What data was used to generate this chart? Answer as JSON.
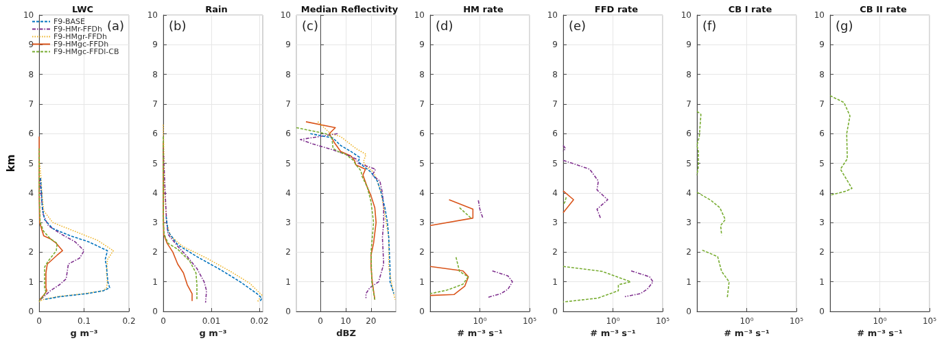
{
  "chart_data": [
    {
      "type": "line",
      "title": "LWC",
      "xlabel": "g m⁻³",
      "ylabel": "km",
      "annotations": [
        "(a)"
      ],
      "xlim": [
        0,
        0.2
      ],
      "xticks": [
        0,
        0.1,
        0.2
      ],
      "ylim": [
        0,
        10
      ],
      "yticks": [
        0,
        1,
        2,
        3,
        4,
        5,
        6,
        7,
        8,
        9,
        10
      ],
      "grid": true,
      "legend": "top left",
      "series": [
        {
          "name": "F9-BASE",
          "color": "#0072bd",
          "line_style": "dashed",
          "x": [
            0.003,
            0.005,
            0.007,
            0.012,
            0.03,
            0.07,
            0.11,
            0.152,
            0.147,
            0.15,
            0.153,
            0.157,
            0.143,
            0.106,
            0.046,
            0.01
          ],
          "values": [
            4.5,
            4,
            3.5,
            3.1,
            2.8,
            2.55,
            2.35,
            2.05,
            1.75,
            1.5,
            1.0,
            0.8,
            0.7,
            0.6,
            0.5,
            0.4
          ]
        },
        {
          "name": "F9-HMr-FFDh",
          "color": "#7e2f8e",
          "line_style": "dashdot",
          "x": [
            0.001,
            0.004,
            0.008,
            0.02,
            0.05,
            0.08,
            0.1,
            0.09,
            0.065,
            0.06,
            0.045,
            0.025,
            0.01,
            0.003,
            0
          ],
          "values": [
            4.5,
            4,
            3.3,
            2.9,
            2.6,
            2.35,
            2.05,
            1.8,
            1.6,
            1.1,
            0.9,
            0.7,
            0.5,
            0.4,
            0.35
          ]
        },
        {
          "name": "F9-HMgr-FFDh",
          "color": "#edb120",
          "line_style": "dotted",
          "x": [
            0.001,
            0.004,
            0.006,
            0.01,
            0.03,
            0.08,
            0.13,
            0.165,
            0.152,
            0.15,
            0.152,
            0.15,
            0.143,
            0.1,
            0.04,
            0.008,
            0
          ],
          "values": [
            5,
            4.5,
            4,
            3.4,
            3.0,
            2.7,
            2.4,
            2.05,
            1.75,
            1.3,
            1.0,
            0.8,
            0.7,
            0.6,
            0.5,
            0.4,
            0.33
          ]
        },
        {
          "name": "F9-HMgc-FFDh",
          "color": "#d95319",
          "line_style": "solid",
          "x": [
            0,
            0,
            0.001,
            0.006,
            0.01,
            0.025,
            0.038,
            0.052,
            0.04,
            0.018,
            0.015,
            0.015,
            0.017,
            0.01,
            0.004,
            0
          ],
          "values": [
            5.9,
            4,
            3,
            2.75,
            2.55,
            2.45,
            2.3,
            2.05,
            1.9,
            1.6,
            1.3,
            0.8,
            0.7,
            0.55,
            0.45,
            0.35
          ]
        },
        {
          "name": "F9-HMgc-FFDl-CB",
          "color": "#77ac30",
          "line_style": "dashed",
          "x": [
            0,
            0,
            0.002,
            0.01,
            0.025,
            0.04,
            0.038,
            0.02,
            0.012,
            0.012,
            0.012,
            0.015,
            0.008,
            0
          ],
          "values": [
            5.5,
            4,
            3,
            2.7,
            2.45,
            2.3,
            2.05,
            1.7,
            1.5,
            1.2,
            0.8,
            0.65,
            0.5,
            0.35
          ]
        }
      ]
    },
    {
      "type": "line",
      "title": "Rain",
      "xlabel": "g m⁻³",
      "annotations": [
        "(b)"
      ],
      "xlim": [
        0,
        0.0207
      ],
      "xticks": [
        0,
        0.01,
        0.02
      ],
      "ylim": [
        0,
        10
      ],
      "yticks": [
        0,
        1,
        2,
        3,
        4,
        5,
        6,
        7,
        8,
        9,
        10
      ],
      "grid": true,
      "series": [
        {
          "color": "#0072bd",
          "line_style": "dashed",
          "x": [
            0.0006,
            0.001,
            0.003,
            0.007,
            0.012,
            0.016,
            0.0195,
            0.0205,
            0.0202
          ],
          "values": [
            3.2,
            2.7,
            2.25,
            1.85,
            1.4,
            1.0,
            0.6,
            0.45,
            0.35
          ]
        },
        {
          "color": "#7e2f8e",
          "line_style": "dashdot",
          "x": [
            0,
            0.0004,
            0.0007,
            0.001,
            0.003,
            0.005,
            0.007,
            0.0085,
            0.009,
            0.0088
          ],
          "values": [
            5.5,
            4,
            3,
            2.6,
            2.2,
            1.85,
            1.45,
            1.0,
            0.7,
            0.3
          ]
        },
        {
          "color": "#edb120",
          "line_style": "dotted",
          "x": [
            0,
            0.0003,
            0.0007,
            0.0015,
            0.004,
            0.009,
            0.014,
            0.018,
            0.0205,
            0.0195
          ],
          "values": [
            6.3,
            4,
            3,
            2.55,
            2.2,
            1.8,
            1.35,
            0.95,
            0.55,
            0.3
          ]
        },
        {
          "color": "#d95319",
          "line_style": "solid",
          "x": [
            0,
            0,
            0.0001,
            0.0008,
            0.002,
            0.003,
            0.0042,
            0.005,
            0.006,
            0.006
          ],
          "values": [
            5.7,
            3.5,
            2.6,
            2.3,
            2.0,
            1.6,
            1.3,
            0.9,
            0.6,
            0.35
          ]
        },
        {
          "color": "#77ac30",
          "line_style": "dashed",
          "x": [
            0,
            0,
            0.0002,
            0.001,
            0.003,
            0.0055,
            0.0068,
            0.007,
            0.007
          ],
          "values": [
            5.9,
            3,
            2.6,
            2.3,
            2.1,
            1.7,
            1.3,
            0.9,
            0.4
          ]
        }
      ]
    },
    {
      "type": "line",
      "title": "Median Reflectivity",
      "xlabel": "dBZ",
      "annotations": [
        "(c)"
      ],
      "xlim": [
        -9.5,
        29.8
      ],
      "xticks": [
        0,
        10,
        20
      ],
      "ylim": [
        0,
        10
      ],
      "yticks": [
        0,
        1,
        2,
        3,
        4,
        5,
        6,
        7,
        8,
        9,
        10
      ],
      "grid": true,
      "series": [
        {
          "color": "#0072bd",
          "line_style": "dashed",
          "x": [
            -4,
            2,
            5,
            8,
            12,
            15.5,
            15,
            17,
            20,
            22.5,
            24,
            25.5,
            26.5,
            27,
            27.5,
            27.5,
            29
          ],
          "values": [
            6.0,
            5.9,
            5.85,
            5.6,
            5.4,
            5.2,
            5.05,
            4.9,
            4.7,
            4.4,
            4.0,
            3.5,
            3.0,
            2.5,
            1.5,
            1.0,
            0.6
          ]
        },
        {
          "color": "#7e2f8e",
          "line_style": "dashdot",
          "x": [
            6.8,
            -7.9,
            -3,
            5,
            10,
            14,
            15,
            21.8,
            20.5,
            23.5,
            24.5,
            25,
            25,
            24.5,
            25,
            23,
            19.5,
            18,
            18
          ],
          "values": [
            6.0,
            5.8,
            5.65,
            5.45,
            5.3,
            5.15,
            5.0,
            4.8,
            4.6,
            4.4,
            4.0,
            3.5,
            3.0,
            2.5,
            1.6,
            1.0,
            0.8,
            0.6,
            0.45
          ]
        },
        {
          "color": "#edb120",
          "line_style": "dotted",
          "x": [
            -1,
            4,
            8,
            14,
            18,
            17,
            18,
            21,
            22.5,
            24,
            25,
            26,
            27,
            27,
            28,
            29.5
          ],
          "values": [
            6.4,
            6.0,
            5.9,
            5.5,
            5.3,
            5.05,
            4.9,
            4.7,
            4.4,
            4.0,
            3.5,
            3.0,
            2.5,
            1.5,
            1.0,
            0.4
          ]
        },
        {
          "color": "#d95319",
          "line_style": "solid",
          "x": [
            -5.7,
            5.9,
            3.5,
            5.5,
            8,
            12,
            13.5,
            14,
            17.8,
            16.8,
            18.5,
            20,
            21.5,
            22,
            21,
            20,
            20,
            20.5,
            21.5
          ],
          "values": [
            6.4,
            6.2,
            6.0,
            5.7,
            5.4,
            5.25,
            5.1,
            4.95,
            4.8,
            4.6,
            4.2,
            3.9,
            3.5,
            3.0,
            2.3,
            1.9,
            1.5,
            1.0,
            0.4
          ]
        },
        {
          "color": "#77ac30",
          "line_style": "dashed",
          "x": [
            -9.5,
            2,
            4.5,
            5,
            7,
            10,
            13,
            14,
            16,
            16.5,
            18.5,
            20,
            21,
            20.5,
            20,
            20.3,
            21.5
          ],
          "values": [
            6.2,
            6.0,
            5.9,
            5.5,
            5.4,
            5.3,
            5.1,
            4.95,
            4.75,
            4.55,
            4.2,
            3.7,
            3.0,
            2.5,
            2.0,
            1.0,
            0.4
          ]
        }
      ]
    },
    {
      "type": "line",
      "title": "HM rate",
      "xlabel": "# m⁻³ s⁻¹",
      "annotations": [
        "(d)"
      ],
      "log": "x",
      "xlim": [
        1e-05,
        100000
      ],
      "xticks": [
        {
          "value": 1e-05,
          "label": null
        },
        {
          "value": 1,
          "label": "10⁰"
        },
        {
          "value": 100000,
          "label": "10⁵"
        }
      ],
      "ylim": [
        0,
        10
      ],
      "yticks": [
        0,
        1,
        2,
        3,
        4,
        5,
        6,
        7,
        8,
        9,
        10
      ],
      "grid": true,
      "series": [
        {
          "color": "#7e2f8e",
          "line_style": "dashdot",
          "x": [
            0.7,
            1,
            2,
            null,
            18,
            660,
            1900,
            660,
            130,
            5.5
          ],
          "values": [
            3.75,
            3.45,
            3.15,
            null,
            1.37,
            1.2,
            1.0,
            0.75,
            0.6,
            0.47
          ]
        },
        {
          "color": "#d95319",
          "line_style": "solid",
          "x": [
            0.0008,
            0.2,
            0.2,
            1e-05,
            null,
            1e-05,
            0.02,
            0.07,
            0.03,
            0.0025,
            1e-05
          ],
          "values": [
            3.77,
            3.45,
            3.15,
            2.9,
            null,
            1.52,
            1.37,
            1.17,
            0.85,
            0.57,
            0.54
          ]
        },
        {
          "color": "#77ac30",
          "line_style": "dashed",
          "x": [
            0.009,
            0.13,
            null,
            0.004,
            0.007,
            0.009,
            0.066,
            0.02,
            0.0005,
            1e-05
          ],
          "values": [
            3.5,
            3.15,
            null,
            1.83,
            1.5,
            1.35,
            1.17,
            0.92,
            0.72,
            0.6
          ]
        }
      ]
    },
    {
      "type": "line",
      "title": "FFD rate",
      "xlabel": "# m⁻³ s⁻¹",
      "annotations": [
        "(e)"
      ],
      "log": "x",
      "xlim": [
        1e-05,
        100000
      ],
      "xticks": [
        {
          "value": 1e-05,
          "label": null
        },
        {
          "value": 1,
          "label": "10⁰"
        },
        {
          "value": 100000,
          "label": "10⁵"
        }
      ],
      "ylim": [
        0,
        10
      ],
      "yticks": [
        0,
        1,
        2,
        3,
        4,
        5,
        6,
        7,
        8,
        9,
        10
      ],
      "grid": true,
      "series": [
        {
          "color": "#7e2f8e",
          "line_style": "dashdot",
          "x": [
            1e-05,
            0.0046,
            0.034,
            0.025,
            0.3,
            0.025,
            0.056,
            null,
            68,
            4800,
            10700,
            2800,
            560,
            16
          ],
          "values": [
            5.1,
            4.8,
            4.4,
            4.1,
            3.77,
            3.45,
            3.15,
            null,
            1.37,
            1.17,
            1.0,
            0.75,
            0.6,
            0.5
          ]
        },
        {
          "color": "#7e2f8e",
          "line_style": "dashdot",
          "x": [
            1e-05,
            1.7e-05,
            1e-05
          ],
          "values": [
            5.6,
            5.5,
            5.4
          ]
        },
        {
          "color": "#d95319",
          "line_style": "solid",
          "x": [
            1e-05,
            0.00011,
            1e-05
          ],
          "values": [
            4.07,
            3.77,
            3.33
          ]
        },
        {
          "color": "#77ac30",
          "line_style": "dashed",
          "x": [
            1e-05,
            0.087,
            60,
            3.5,
            3.5,
            0.03,
            1e-05
          ],
          "values": [
            1.52,
            1.35,
            1.0,
            0.9,
            0.7,
            0.45,
            0.32
          ]
        },
        {
          "color": "#77ac30",
          "line_style": "dashed",
          "x": [
            2e-05,
            1.5e-05,
            1e-05
          ],
          "values": [
            3.85,
            3.7,
            3.6
          ]
        }
      ]
    },
    {
      "type": "line",
      "title": "CB I rate",
      "xlabel": "# m⁻³ s⁻¹",
      "annotations": [
        "(f)"
      ],
      "log": "x",
      "xlim": [
        1e-05,
        100000
      ],
      "xticks": [
        {
          "value": 1e-05,
          "label": null
        },
        {
          "value": 1,
          "label": "10⁰"
        },
        {
          "value": 100000,
          "label": "10⁵"
        }
      ],
      "ylim": [
        0,
        10
      ],
      "yticks": [
        0,
        1,
        2,
        3,
        4,
        5,
        6,
        7,
        8,
        9,
        10
      ],
      "grid": true,
      "series": [
        {
          "color": "#77ac30",
          "line_style": "dashed",
          "x": [
            1e-05,
            2.5e-05,
            1.7e-05,
            1e-05,
            1.4e-05,
            1.4e-05,
            1e-05,
            null,
            1e-05,
            0.00025,
            0.002,
            0.007,
            0.0024,
            0.003,
            null,
            3.4e-05,
            0.0012,
            0.003,
            0.017,
            0.011
          ],
          "values": [
            6.75,
            6.65,
            5.9,
            5.6,
            5.4,
            4.9,
            4.6,
            null,
            4.02,
            3.75,
            3.5,
            3.1,
            2.9,
            2.58,
            null,
            2.07,
            1.85,
            1.35,
            1.0,
            0.45
          ]
        }
      ]
    },
    {
      "type": "line",
      "title": "CB II rate",
      "xlabel": "# m⁻³ s⁻¹",
      "annotations": [
        "(g)"
      ],
      "log": "x",
      "xlim": [
        1e-05,
        100000
      ],
      "xticks": [
        {
          "value": 1e-05,
          "label": null
        },
        {
          "value": 1,
          "label": "10⁰"
        },
        {
          "value": 100000,
          "label": "10⁵"
        }
      ],
      "ylim": [
        0,
        10
      ],
      "yticks": [
        0,
        1,
        2,
        3,
        4,
        5,
        6,
        7,
        8,
        9,
        10
      ],
      "grid": true,
      "series": [
        {
          "color": "#77ac30",
          "line_style": "dashed",
          "x": [
            1e-05,
            0.00025,
            0.001,
            0.00047,
            0.00054,
            0.00011,
            0.0016,
            0.00032,
            1e-05
          ],
          "values": [
            7.28,
            7.05,
            6.6,
            6.0,
            5.15,
            4.8,
            4.15,
            4.05,
            3.92
          ]
        }
      ]
    }
  ]
}
